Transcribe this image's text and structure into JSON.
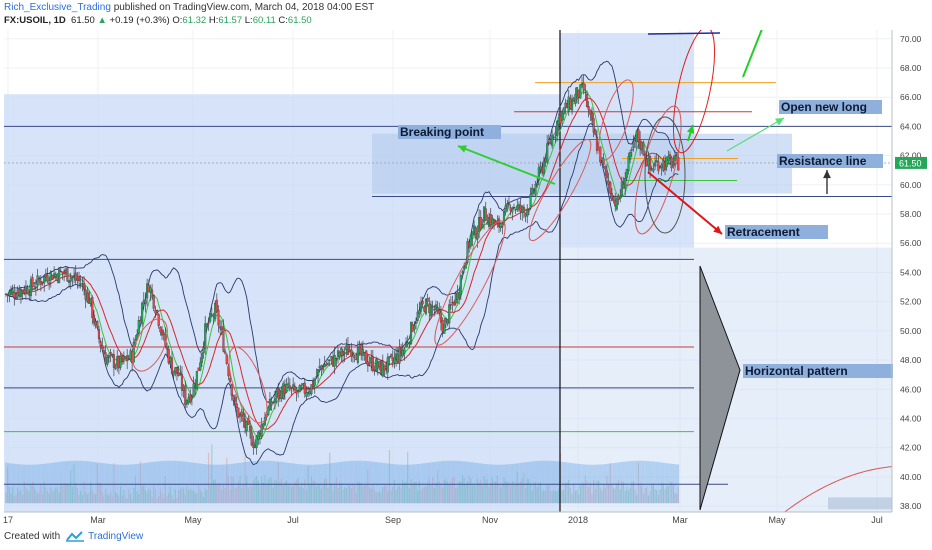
{
  "header": {
    "author": "Rich_Exclusive_Trading",
    "published_text": "published on TradingView.com, March 04, 2018 04:00 EST"
  },
  "ohlc": {
    "symbol": "FX:USOIL, 1D",
    "last": "61.50",
    "change": "+0.19 (+0.3%)",
    "o_label": "O:",
    "o": "61.32",
    "h_label": "H:",
    "h": "61.57",
    "l_label": "L:",
    "l": "60.11",
    "c_label": "C:",
    "c": "61.50"
  },
  "footer": {
    "created_with": "Created with",
    "brand": "TradingView"
  },
  "colors": {
    "up_candle": "#26a65b",
    "down_candle": "#e04848",
    "shade": "#c8daf5",
    "annotation_box": "#8fb0dc",
    "price_tag": "#26a65b",
    "bollinger": "#2b3a6b",
    "ma_fast": "#3cc43c",
    "ma_slow": "#d62a2a"
  },
  "chart_data": {
    "type": "candlestick",
    "symbol": "FX:USOIL",
    "timeframe": "1D",
    "y_axis": {
      "range": [
        37.6,
        70.6
      ],
      "ticks": [
        "70.00",
        "68.00",
        "66.00",
        "64.00",
        "62.00",
        "60.00",
        "58.00",
        "56.00",
        "54.00",
        "52.00",
        "50.00",
        "48.00",
        "46.00",
        "44.00",
        "42.00",
        "40.00",
        "38.00"
      ]
    },
    "x_axis": {
      "tick_labels": [
        "17",
        "Mar",
        "May",
        "Jul",
        "Sep",
        "Nov",
        "2018",
        "Mar",
        "May",
        "Jul"
      ]
    },
    "current_price_label": "61.50",
    "price_path": {
      "days": [
        0,
        15,
        25,
        35,
        45,
        50,
        55,
        60,
        68,
        76,
        82,
        86,
        90,
        96,
        100,
        104,
        108,
        112,
        116,
        120,
        126,
        130,
        134,
        138,
        144,
        150,
        156,
        162,
        168,
        176,
        184,
        190,
        196,
        202,
        208,
        214,
        220,
        226,
        232,
        240,
        246,
        252,
        258,
        264,
        268,
        272,
        276,
        280,
        284,
        288,
        292,
        296,
        300,
        304,
        308,
        312,
        316,
        320,
        324,
        328,
        332,
        336,
        340,
        344,
        348,
        352,
        356,
        360,
        364,
        368,
        372,
        376,
        380,
        384,
        388,
        392,
        396,
        400,
        404,
        408,
        412,
        416
      ],
      "close": [
        52.5,
        53.0,
        53.8,
        54.0,
        53.3,
        52.2,
        49.8,
        48.2,
        47.7,
        48.3,
        51.8,
        53.2,
        51.7,
        49.0,
        47.5,
        47.0,
        45.3,
        45.8,
        47.5,
        50.0,
        51.4,
        49.7,
        47.3,
        44.8,
        43.5,
        42.2,
        44.2,
        45.4,
        46.1,
        45.7,
        46.2,
        47.6,
        47.9,
        48.4,
        48.8,
        48.3,
        47.8,
        47.4,
        47.8,
        48.8,
        50.7,
        51.8,
        51.5,
        50.2,
        51.6,
        52.6,
        54.8,
        56.4,
        57.0,
        58.0,
        57.6,
        57.1,
        57.8,
        58.7,
        58.4,
        58.1,
        58.9,
        60.3,
        61.6,
        63.0,
        64.3,
        65.1,
        65.6,
        66.2,
        66.5,
        64.4,
        62.7,
        61.1,
        59.7,
        58.6,
        60.2,
        61.8,
        63.3,
        62.4,
        61.0,
        61.5,
        61.5,
        61.5,
        61.5,
        61.5,
        61.5,
        61.5
      ]
    },
    "indicators": [
      "Bollinger Bands",
      "moving average (green)",
      "moving average (red)",
      "volume"
    ],
    "horizontal_lines": [
      {
        "price": 64.0,
        "color": "#3a4a86"
      },
      {
        "price": 59.2,
        "color": "#3a4a86"
      },
      {
        "price": 54.9,
        "color": "#3a4a86"
      },
      {
        "price": 48.9,
        "color": "#cc3b3b"
      },
      {
        "price": 46.1,
        "color": "#3a4a86"
      },
      {
        "price": 43.1,
        "color": "#3cc43c"
      },
      {
        "price": 39.5,
        "color": "#3a4a86"
      },
      {
        "price": 67.0,
        "color": "#f0a020"
      },
      {
        "price": 65.0,
        "color": "#cc3b3b"
      },
      {
        "price": 63.1,
        "color": "#cc3b3b"
      },
      {
        "price": 61.8,
        "color": "#f0a020"
      },
      {
        "price": 60.3,
        "color": "#3cc43c"
      }
    ],
    "annotations": [
      {
        "text": "Breaking point",
        "kind": "label"
      },
      {
        "text": "Open new long",
        "kind": "label"
      },
      {
        "text": "Resistance line",
        "kind": "label"
      },
      {
        "text": "Retracement",
        "kind": "label"
      },
      {
        "text": "Horizontal pattern",
        "kind": "label"
      }
    ]
  }
}
